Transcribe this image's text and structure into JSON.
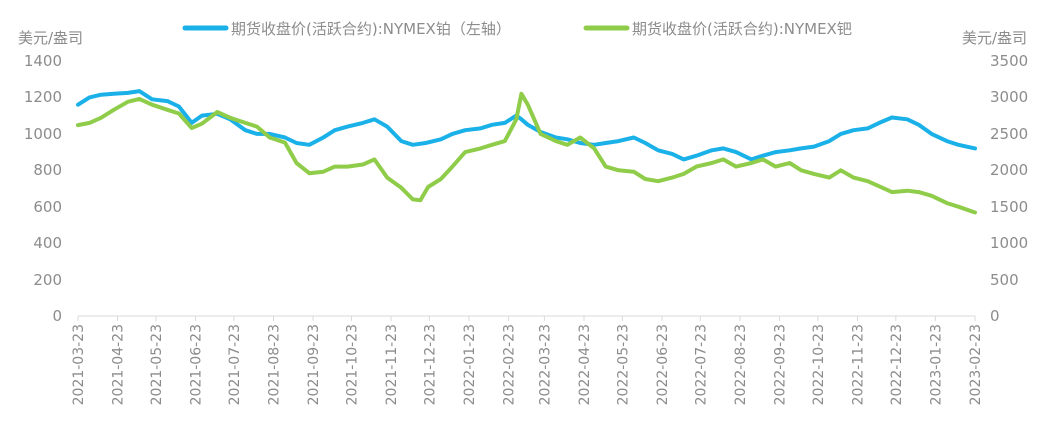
{
  "chart_data": {
    "type": "line",
    "left_unit": "美元/盎司",
    "right_unit": "美元/盎司",
    "left_ylim": [
      0,
      1400
    ],
    "right_ylim": [
      0,
      3500
    ],
    "left_ticks": [
      "1400",
      "1200",
      "1000",
      "800",
      "600",
      "400",
      "200",
      "0"
    ],
    "right_ticks": [
      "3500",
      "3000",
      "2500",
      "2000",
      "1500",
      "1000",
      "500",
      "0"
    ],
    "x_ticks": [
      "2021-03-23",
      "2021-04-23",
      "2021-05-23",
      "2021-06-23",
      "2021-07-23",
      "2021-08-23",
      "2021-09-23",
      "2021-10-23",
      "2021-11-23",
      "2021-12-23",
      "2022-01-23",
      "2022-02-23",
      "2022-03-23",
      "2022-04-23",
      "2022-05-23",
      "2022-06-23",
      "2022-07-23",
      "2022-08-23",
      "2022-09-23",
      "2022-10-23",
      "2022-11-23",
      "2022-12-23",
      "2023-01-23",
      "2023-02-23"
    ],
    "grid": false,
    "legend_position": "top",
    "series": [
      {
        "name": "期货收盘价(活跃合约):NYMEX铂（左轴）",
        "axis": "left",
        "color": "#1ab0e8",
        "points": [
          [
            "2021-03-23",
            1160
          ],
          [
            "2021-04-01",
            1200
          ],
          [
            "2021-04-10",
            1215
          ],
          [
            "2021-04-20",
            1220
          ],
          [
            "2021-05-01",
            1225
          ],
          [
            "2021-05-10",
            1235
          ],
          [
            "2021-05-20",
            1190
          ],
          [
            "2021-06-01",
            1180
          ],
          [
            "2021-06-10",
            1150
          ],
          [
            "2021-06-20",
            1060
          ],
          [
            "2021-06-28",
            1100
          ],
          [
            "2021-07-10",
            1110
          ],
          [
            "2021-07-20",
            1080
          ],
          [
            "2021-08-01",
            1020
          ],
          [
            "2021-08-10",
            1000
          ],
          [
            "2021-08-20",
            1000
          ],
          [
            "2021-09-01",
            980
          ],
          [
            "2021-09-10",
            950
          ],
          [
            "2021-09-20",
            940
          ],
          [
            "2021-10-01",
            980
          ],
          [
            "2021-10-10",
            1020
          ],
          [
            "2021-10-20",
            1040
          ],
          [
            "2021-11-01",
            1060
          ],
          [
            "2021-11-10",
            1080
          ],
          [
            "2021-11-20",
            1040
          ],
          [
            "2021-12-01",
            960
          ],
          [
            "2021-12-10",
            940
          ],
          [
            "2021-12-20",
            950
          ],
          [
            "2022-01-01",
            970
          ],
          [
            "2022-01-10",
            1000
          ],
          [
            "2022-01-20",
            1020
          ],
          [
            "2022-02-01",
            1030
          ],
          [
            "2022-02-10",
            1050
          ],
          [
            "2022-02-20",
            1060
          ],
          [
            "2022-03-01",
            1100
          ],
          [
            "2022-03-05",
            1080
          ],
          [
            "2022-03-10",
            1050
          ],
          [
            "2022-03-20",
            1010
          ],
          [
            "2022-04-01",
            980
          ],
          [
            "2022-04-10",
            970
          ],
          [
            "2022-04-20",
            950
          ],
          [
            "2022-05-01",
            940
          ],
          [
            "2022-05-10",
            950
          ],
          [
            "2022-05-20",
            960
          ],
          [
            "2022-06-01",
            980
          ],
          [
            "2022-06-10",
            950
          ],
          [
            "2022-06-20",
            910
          ],
          [
            "2022-07-01",
            890
          ],
          [
            "2022-07-10",
            860
          ],
          [
            "2022-07-20",
            880
          ],
          [
            "2022-08-01",
            910
          ],
          [
            "2022-08-10",
            920
          ],
          [
            "2022-08-20",
            900
          ],
          [
            "2022-09-01",
            860
          ],
          [
            "2022-09-10",
            880
          ],
          [
            "2022-09-20",
            900
          ],
          [
            "2022-10-01",
            910
          ],
          [
            "2022-10-10",
            920
          ],
          [
            "2022-10-20",
            930
          ],
          [
            "2022-11-01",
            960
          ],
          [
            "2022-11-10",
            1000
          ],
          [
            "2022-11-20",
            1020
          ],
          [
            "2022-12-01",
            1030
          ],
          [
            "2022-12-10",
            1060
          ],
          [
            "2022-12-20",
            1090
          ],
          [
            "2023-01-01",
            1080
          ],
          [
            "2023-01-10",
            1050
          ],
          [
            "2023-01-20",
            1000
          ],
          [
            "2023-02-01",
            960
          ],
          [
            "2023-02-10",
            940
          ],
          [
            "2023-02-23",
            920
          ]
        ]
      },
      {
        "name": "期货收盘价(活跃合约):NYMEX钯",
        "axis": "right",
        "color": "#8fcc4a",
        "points": [
          [
            "2021-03-23",
            2620
          ],
          [
            "2021-04-01",
            2650
          ],
          [
            "2021-04-10",
            2720
          ],
          [
            "2021-04-20",
            2830
          ],
          [
            "2021-05-01",
            2940
          ],
          [
            "2021-05-10",
            2980
          ],
          [
            "2021-05-20",
            2900
          ],
          [
            "2021-06-01",
            2830
          ],
          [
            "2021-06-10",
            2780
          ],
          [
            "2021-06-20",
            2580
          ],
          [
            "2021-06-28",
            2640
          ],
          [
            "2021-07-10",
            2800
          ],
          [
            "2021-07-20",
            2720
          ],
          [
            "2021-08-01",
            2650
          ],
          [
            "2021-08-10",
            2600
          ],
          [
            "2021-08-20",
            2450
          ],
          [
            "2021-09-01",
            2380
          ],
          [
            "2021-09-10",
            2100
          ],
          [
            "2021-09-20",
            1960
          ],
          [
            "2021-10-01",
            1980
          ],
          [
            "2021-10-10",
            2050
          ],
          [
            "2021-10-20",
            2050
          ],
          [
            "2021-11-01",
            2080
          ],
          [
            "2021-11-10",
            2150
          ],
          [
            "2021-11-20",
            1900
          ],
          [
            "2021-12-01",
            1760
          ],
          [
            "2021-12-10",
            1600
          ],
          [
            "2021-12-16",
            1590
          ],
          [
            "2021-12-22",
            1770
          ],
          [
            "2022-01-01",
            1880
          ],
          [
            "2022-01-10",
            2050
          ],
          [
            "2022-01-20",
            2250
          ],
          [
            "2022-02-01",
            2300
          ],
          [
            "2022-02-10",
            2350
          ],
          [
            "2022-02-20",
            2400
          ],
          [
            "2022-03-01",
            2700
          ],
          [
            "2022-03-05",
            3050
          ],
          [
            "2022-03-10",
            2900
          ],
          [
            "2022-03-20",
            2500
          ],
          [
            "2022-04-01",
            2400
          ],
          [
            "2022-04-10",
            2350
          ],
          [
            "2022-04-20",
            2450
          ],
          [
            "2022-05-01",
            2300
          ],
          [
            "2022-05-10",
            2050
          ],
          [
            "2022-05-20",
            2000
          ],
          [
            "2022-06-01",
            1980
          ],
          [
            "2022-06-10",
            1880
          ],
          [
            "2022-06-20",
            1850
          ],
          [
            "2022-07-01",
            1900
          ],
          [
            "2022-07-10",
            1950
          ],
          [
            "2022-07-20",
            2050
          ],
          [
            "2022-08-01",
            2100
          ],
          [
            "2022-08-10",
            2150
          ],
          [
            "2022-08-20",
            2050
          ],
          [
            "2022-09-01",
            2100
          ],
          [
            "2022-09-10",
            2150
          ],
          [
            "2022-09-20",
            2050
          ],
          [
            "2022-10-01",
            2100
          ],
          [
            "2022-10-10",
            2000
          ],
          [
            "2022-10-20",
            1950
          ],
          [
            "2022-11-01",
            1900
          ],
          [
            "2022-11-10",
            2000
          ],
          [
            "2022-11-20",
            1900
          ],
          [
            "2022-12-01",
            1850
          ],
          [
            "2022-12-10",
            1780
          ],
          [
            "2022-12-20",
            1700
          ],
          [
            "2023-01-01",
            1720
          ],
          [
            "2023-01-10",
            1700
          ],
          [
            "2023-01-20",
            1650
          ],
          [
            "2023-02-01",
            1550
          ],
          [
            "2023-02-10",
            1500
          ],
          [
            "2023-02-23",
            1420
          ]
        ]
      }
    ]
  }
}
